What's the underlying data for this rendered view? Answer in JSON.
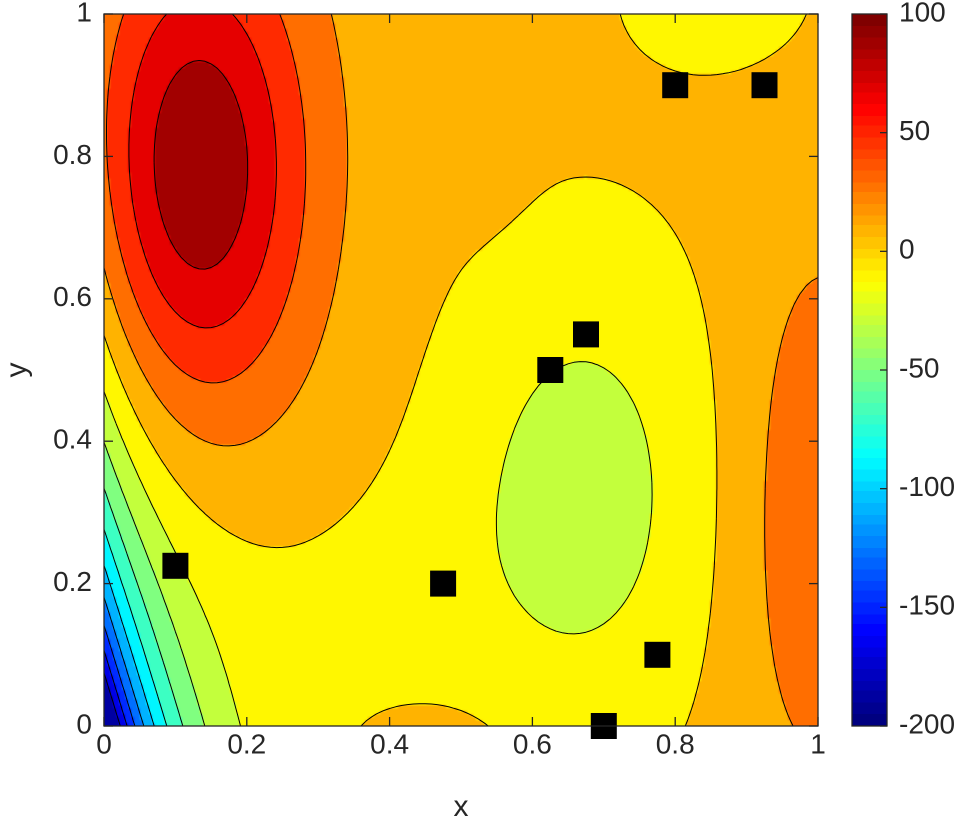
{
  "chart_data": {
    "type": "contour",
    "xlabel": "x",
    "ylabel": "y",
    "xlim": [
      0,
      1
    ],
    "ylim": [
      0,
      1
    ],
    "x_ticks": [
      "0",
      "0.2",
      "0.4",
      "0.6",
      "0.8",
      "1"
    ],
    "y_ticks": [
      "0",
      "0.2",
      "0.4",
      "0.6",
      "0.8",
      "1"
    ],
    "colorbar": {
      "range": [
        -200,
        100
      ],
      "colormap": "jet",
      "tick_values": [
        100,
        50,
        0,
        -50,
        -100,
        -150,
        -200
      ],
      "tick_labels": [
        "100",
        "50",
        "0",
        "-50",
        "-100",
        "-150",
        "-200"
      ]
    },
    "contour_level_step": 20,
    "field_features": [
      {
        "kind": "maximum",
        "x": 0.15,
        "y": 0.75,
        "value": 95
      },
      {
        "kind": "local-maximum",
        "x": 0.5,
        "y": 0.8,
        "value": 25
      },
      {
        "kind": "local-minimum",
        "x": 0.67,
        "y": 0.31,
        "value": -25
      },
      {
        "kind": "minimum",
        "x": 0.0,
        "y": 0.0,
        "value": -200
      }
    ],
    "sample_points": [
      {
        "x": 0.1,
        "y": 0.225
      },
      {
        "x": 0.475,
        "y": 0.2
      },
      {
        "x": 0.625,
        "y": 0.5
      },
      {
        "x": 0.675,
        "y": 0.55
      },
      {
        "x": 0.8,
        "y": 0.9
      },
      {
        "x": 0.925,
        "y": 0.9
      },
      {
        "x": 0.775,
        "y": 0.1
      },
      {
        "x": 0.7,
        "y": 0.0
      }
    ],
    "marker": {
      "shape": "square",
      "color": "#000000"
    }
  }
}
